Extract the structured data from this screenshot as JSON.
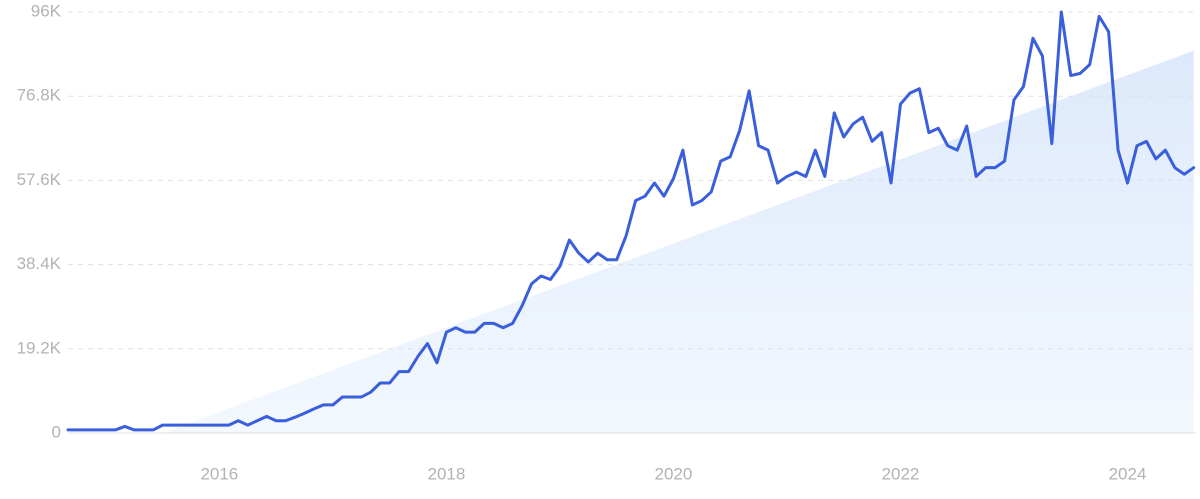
{
  "chart_data": {
    "type": "line",
    "categories": [
      null,
      null,
      null,
      null,
      null,
      null,
      null,
      null,
      null,
      null,
      null,
      null,
      null,
      null,
      null,
      null,
      "2016",
      null,
      null,
      null,
      null,
      null,
      null,
      null,
      null,
      null,
      null,
      null,
      null,
      null,
      null,
      null,
      null,
      null,
      null,
      null,
      null,
      null,
      null,
      null,
      "2018",
      null,
      null,
      null,
      null,
      null,
      null,
      null,
      null,
      null,
      null,
      null,
      null,
      null,
      null,
      null,
      null,
      null,
      null,
      null,
      null,
      null,
      null,
      null,
      "2020",
      null,
      null,
      null,
      null,
      null,
      null,
      null,
      null,
      null,
      null,
      null,
      null,
      null,
      null,
      null,
      null,
      null,
      null,
      null,
      null,
      null,
      null,
      null,
      "2022",
      null,
      null,
      null,
      null,
      null,
      null,
      null,
      null,
      null,
      null,
      null,
      null,
      null,
      null,
      null,
      null,
      null,
      null,
      null,
      null,
      null,
      null,
      null,
      "2024",
      null,
      null,
      null,
      null,
      null,
      null,
      null
    ],
    "series": [
      {
        "color": "#3a5fdc",
        "values": [
          700,
          700,
          700,
          700,
          700,
          700,
          1500,
          700,
          700,
          700,
          1800,
          1800,
          1800,
          1800,
          1800,
          1800,
          1800,
          1800,
          2800,
          1800,
          2800,
          3800,
          2800,
          2800,
          3600,
          4500,
          5500,
          6400,
          6400,
          8200,
          8200,
          8200,
          9300,
          11400,
          11400,
          14000,
          14000,
          17500,
          20400,
          16000,
          23000,
          24000,
          23000,
          23000,
          25000,
          25000,
          24000,
          25000,
          29000,
          34000,
          35800,
          35000,
          38000,
          44000,
          41000,
          39000,
          41000,
          39500,
          39500,
          45000,
          53000,
          54000,
          57000,
          54000,
          58000,
          64500,
          52000,
          53000,
          55000,
          62000,
          63000,
          69000,
          78000,
          65500,
          64500,
          57000,
          58500,
          59500,
          58500,
          64500,
          58500,
          73000,
          67500,
          70500,
          72000,
          66500,
          68500,
          57000,
          75000,
          77500,
          78500,
          68500,
          69500,
          65500,
          64500,
          70000,
          58500,
          60500,
          60500,
          62000,
          76000,
          79000,
          90000,
          86000,
          66000,
          96000,
          81500,
          82000,
          84000,
          95000,
          91500,
          64500,
          57000,
          65500,
          66500,
          62500,
          64500,
          60500,
          59000,
          60500
        ]
      },
      {
        "color": "#e2ecfb",
        "style": "area",
        "values": [
          null,
          null,
          null,
          null,
          null,
          null,
          null,
          null,
          null,
          null,
          0,
          800,
          1600,
          2400,
          3200,
          4000,
          4800,
          5600,
          6400,
          7200,
          8000,
          8800,
          9600,
          10400,
          11200,
          12000,
          12800,
          13600,
          14400,
          15200,
          16000,
          16800,
          17600,
          18400,
          19200,
          20000,
          20800,
          21600,
          22400,
          23200,
          24000,
          24800,
          25600,
          26400,
          27200,
          28000,
          28800,
          29600,
          30400,
          31200,
          32000,
          32800,
          33600,
          34400,
          35200,
          36000,
          36800,
          37600,
          38400,
          39200,
          40000,
          40800,
          41600,
          42400,
          43200,
          44000,
          44800,
          45600,
          46400,
          47200,
          48000,
          48800,
          49600,
          50400,
          51200,
          52000,
          52800,
          53600,
          54400,
          55200,
          56000,
          56800,
          57600,
          58400,
          59200,
          60000,
          60800,
          61600,
          62400,
          63200,
          64000,
          64800,
          65600,
          66400,
          67200,
          68000,
          68800,
          69600,
          70400,
          71200,
          72000,
          72800,
          73600,
          74400,
          75200,
          76000,
          76800,
          77600,
          78400,
          79200,
          80000,
          80800,
          81600,
          82400,
          83200,
          84000,
          84800,
          85600,
          86400,
          87200
        ]
      }
    ],
    "ylim": [
      0,
      96000
    ],
    "yticks": [
      0,
      {
        "value": 19200,
        "label": "19.2K"
      },
      {
        "value": 38400,
        "label": "38.4K"
      },
      {
        "value": 57600,
        "label": "57.6K"
      },
      {
        "value": 76800,
        "label": "76.8K"
      },
      {
        "value": 96000,
        "label": "96K"
      }
    ],
    "grid": true
  }
}
